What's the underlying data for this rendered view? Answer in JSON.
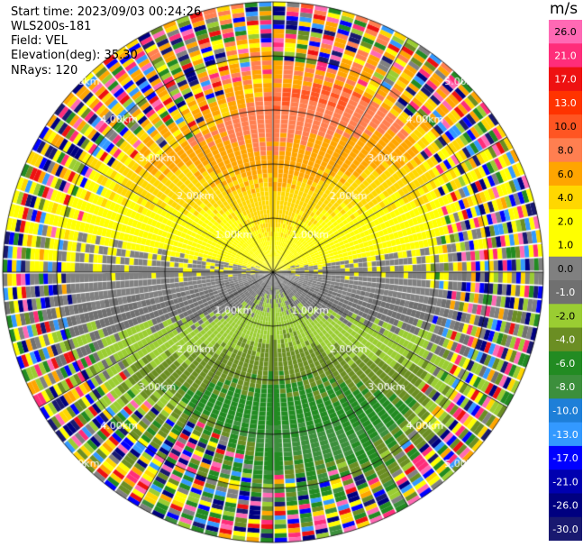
{
  "header": {
    "start_time": "Start time: 2023/09/03 00:24:26",
    "instrument": "WLS200s-181",
    "field": "Field: VEL",
    "elevation": "Elevation(deg): 35.30",
    "nrays": "NRays: 120"
  },
  "colorbar": {
    "unit": "m/s",
    "bins": [
      {
        "label": "26.0",
        "color": "#ff69b4"
      },
      {
        "label": "21.0",
        "color": "#ff2d7a"
      },
      {
        "label": "17.0",
        "color": "#ee1111"
      },
      {
        "label": "13.0",
        "color": "#ff3300"
      },
      {
        "label": "10.0",
        "color": "#ff5522"
      },
      {
        "label": "8.0",
        "color": "#ff7f50"
      },
      {
        "label": "6.0",
        "color": "#ffa500"
      },
      {
        "label": "4.0",
        "color": "#ffd700"
      },
      {
        "label": "2.0",
        "color": "#ffff00"
      },
      {
        "label": "1.0",
        "color": "#ffff00"
      },
      {
        "label": "0.0",
        "color": "#808080"
      },
      {
        "label": "-1.0",
        "color": "#707070"
      },
      {
        "label": "-2.0",
        "color": "#9acd32"
      },
      {
        "label": "-4.0",
        "color": "#6b8e23"
      },
      {
        "label": "-6.0",
        "color": "#228b22"
      },
      {
        "label": "-8.0",
        "color": "#3c8f3c"
      },
      {
        "label": "-10.0",
        "color": "#1e7fd8"
      },
      {
        "label": "-13.0",
        "color": "#3399ff"
      },
      {
        "label": "-17.0",
        "color": "#0000ff"
      },
      {
        "label": "-21.0",
        "color": "#0000b0"
      },
      {
        "label": "-26.0",
        "color": "#000080"
      },
      {
        "label": "-30.0",
        "color": "#191970"
      }
    ]
  },
  "chart_data": {
    "type": "ppi",
    "field": "VEL",
    "units": "m/s",
    "n_rays": 120,
    "elevation_deg": 35.3,
    "max_range_km": 5.0,
    "range_rings_km": [
      1,
      2,
      3,
      4,
      5
    ],
    "ring_labels": [
      "1.00km",
      "2.00km",
      "3.00km",
      "4.00km",
      "5.00km"
    ],
    "background_text": "1.00km",
    "value_min": -30,
    "value_max": 26,
    "description_of_pattern": "positive velocities (toward red/orange) to the north, negative (green/blue) to the south, noisy beyond ~3.5 km"
  }
}
